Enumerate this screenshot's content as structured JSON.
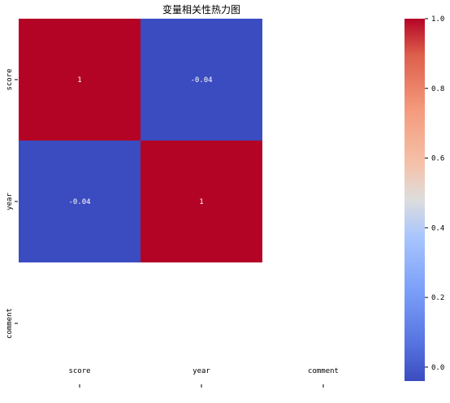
{
  "chart_data": {
    "type": "heatmap",
    "title": "变量相关性热力图",
    "x_categories": [
      "score",
      "year",
      "comment"
    ],
    "y_categories": [
      "score",
      "year",
      "comment"
    ],
    "matrix": [
      [
        1,
        -0.04,
        null
      ],
      [
        -0.04,
        1,
        null
      ],
      [
        null,
        null,
        null
      ]
    ],
    "cell_labels": [
      [
        "1",
        "-0.04",
        ""
      ],
      [
        "-0.04",
        "1",
        ""
      ],
      [
        "",
        "",
        ""
      ]
    ],
    "colormap": "coolwarm",
    "colorbar": {
      "range": [
        -0.04,
        1.0
      ],
      "ticks": [
        0.0,
        0.2,
        0.4,
        0.6,
        0.8,
        1.0
      ],
      "tick_labels": [
        "0.0",
        "0.2",
        "0.4",
        "0.6",
        "0.8",
        "1.0"
      ]
    },
    "colors": {
      "low": "#3b4cc0",
      "mid": "#dddddd",
      "high": "#b40426"
    }
  }
}
